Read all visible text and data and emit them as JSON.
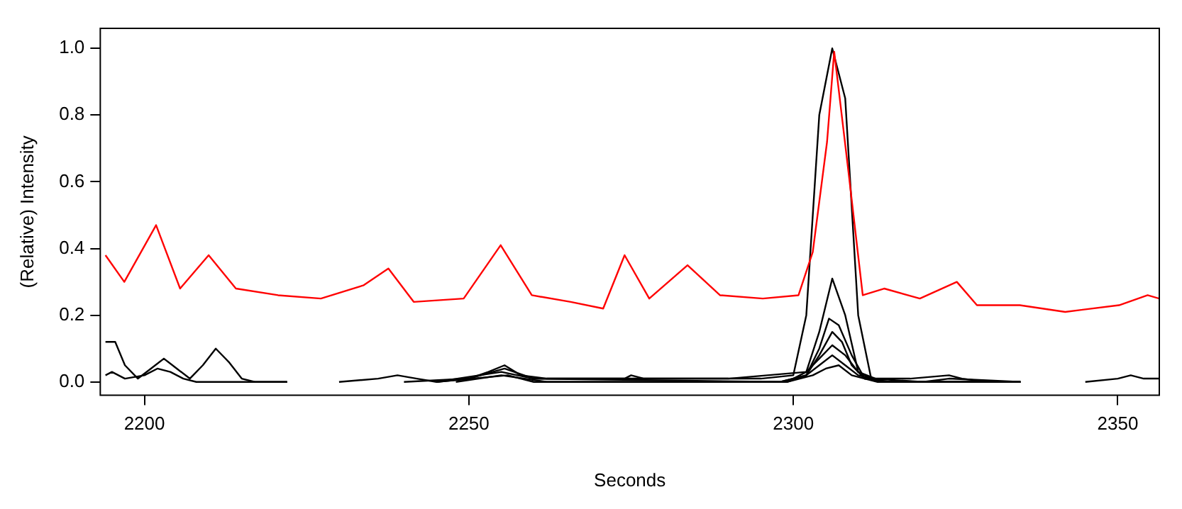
{
  "chart_data": {
    "type": "line",
    "xlabel": "Seconds",
    "ylabel": "(Relative) Intensity",
    "xlim": [
      2193.2,
      2356.4
    ],
    "ylim": [
      -0.04,
      1.06
    ],
    "xticks": [
      2200,
      2250,
      2300,
      2350
    ],
    "yticks": [
      {
        "value": 0,
        "label": "0.0"
      },
      {
        "value": 0.2,
        "label": "0.2"
      },
      {
        "value": 0.4,
        "label": "0.4"
      },
      {
        "value": 0.6,
        "label": "0.6"
      },
      {
        "value": 0.8,
        "label": "0.8"
      },
      {
        "value": 1,
        "label": "1.0"
      }
    ],
    "grid": false,
    "legend": false,
    "marker": "none",
    "line_style": "solid",
    "series": [
      {
        "color": "#ff0000",
        "x": [
          2194,
          2196.9,
          2201.8,
          2205.5,
          2209.9,
          2214.1,
          2220.6,
          2227.2,
          2233.8,
          2237.6,
          2241.5,
          2249.2,
          2254.9,
          2259.7,
          2265.7,
          2270.7,
          2274,
          2277.8,
          2283.7,
          2288.7,
          2295.3,
          2300.8,
          2303,
          2305.2,
          2306.3,
          2308.5,
          2310.7,
          2314,
          2319.5,
          2325.2,
          2328.3,
          2334.9,
          2341.9,
          2350.2,
          2354.6,
          2356.4
        ],
        "values": [
          0.38,
          0.3,
          0.47,
          0.28,
          0.38,
          0.28,
          0.26,
          0.25,
          0.29,
          0.34,
          0.24,
          0.25,
          0.41,
          0.26,
          0.24,
          0.22,
          0.38,
          0.25,
          0.35,
          0.26,
          0.25,
          0.26,
          0.39,
          0.72,
          0.99,
          0.63,
          0.26,
          0.28,
          0.25,
          0.3,
          0.23,
          0.23,
          0.21,
          0.23,
          0.26,
          0.25
        ]
      },
      {
        "color": "#000000",
        "x": [
          2194,
          2195.5,
          2197,
          2199,
          2201,
          2203,
          2205,
          2207,
          2209,
          2211,
          2213,
          2215,
          2217,
          2222
        ],
        "values": [
          0.12,
          0.12,
          0.05,
          0.01,
          0.04,
          0.07,
          0.04,
          0.01,
          0.05,
          0.1,
          0.06,
          0.01,
          0,
          0
        ]
      },
      {
        "color": "#000000",
        "x": [
          2194,
          2195,
          2197,
          2200,
          2202,
          2204,
          2206,
          2208,
          2222
        ],
        "values": [
          0.02,
          0.03,
          0.01,
          0.02,
          0.04,
          0.03,
          0.01,
          0,
          0
        ]
      },
      {
        "color": "#000000",
        "x": [
          2230,
          2236,
          2239,
          2242,
          2245,
          2250,
          2253,
          2255.5,
          2258,
          2262,
          2268,
          2274,
          2275,
          2277,
          2285,
          2295,
          2300,
          2302,
          2304,
          2306,
          2308,
          2310,
          2312,
          2318,
          2324,
          2326,
          2330,
          2335
        ],
        "values": [
          0,
          0.01,
          0.02,
          0.01,
          0,
          0.01,
          0.03,
          0.05,
          0.02,
          0.01,
          0.01,
          0.01,
          0.02,
          0.01,
          0.01,
          0.01,
          0.02,
          0.2,
          0.8,
          1,
          0.85,
          0.2,
          0.01,
          0.01,
          0.02,
          0.01,
          0,
          0
        ]
      },
      {
        "color": "#000000",
        "x": [
          2240,
          2250,
          2255.5,
          2260,
          2290,
          2302,
          2304,
          2306,
          2308,
          2310,
          2312,
          2320,
          2324,
          2335
        ],
        "values": [
          0,
          0.01,
          0.04,
          0.01,
          0.01,
          0.03,
          0.15,
          0.31,
          0.2,
          0.03,
          0.01,
          0,
          0.01,
          0
        ]
      },
      {
        "color": "#000000",
        "x": [
          2245,
          2255,
          2260,
          2298,
          2302,
          2304,
          2305.5,
          2307,
          2309,
          2311,
          2315,
          2335
        ],
        "values": [
          0,
          0.03,
          0.01,
          0,
          0.02,
          0.1,
          0.19,
          0.17,
          0.08,
          0.01,
          0,
          0
        ]
      },
      {
        "color": "#000000",
        "x": [
          2245,
          2256,
          2260,
          2298,
          2302,
          2304,
          2306,
          2307.5,
          2309,
          2311,
          2315,
          2335
        ],
        "values": [
          0,
          0.02,
          0,
          0,
          0.02,
          0.08,
          0.15,
          0.12,
          0.05,
          0.01,
          0,
          0
        ]
      },
      {
        "color": "#000000",
        "x": [
          2248,
          2255,
          2262,
          2299,
          2302,
          2304,
          2306,
          2308,
          2310,
          2314,
          2335
        ],
        "values": [
          0,
          0.02,
          0,
          0,
          0.03,
          0.07,
          0.11,
          0.08,
          0.03,
          0,
          0
        ]
      },
      {
        "color": "#000000",
        "x": [
          2299,
          2302,
          2304,
          2306,
          2308,
          2310,
          2314,
          2335
        ],
        "values": [
          0,
          0.02,
          0.05,
          0.08,
          0.05,
          0.02,
          0,
          0
        ]
      },
      {
        "color": "#000000",
        "x": [
          2299,
          2303,
          2305,
          2307,
          2309,
          2313,
          2335
        ],
        "values": [
          0,
          0.02,
          0.04,
          0.05,
          0.02,
          0,
          0
        ]
      },
      {
        "color": "#000000",
        "x": [
          2345,
          2350,
          2352,
          2354,
          2356.4
        ],
        "values": [
          0,
          0.01,
          0.02,
          0.01,
          0.01
        ]
      }
    ]
  }
}
